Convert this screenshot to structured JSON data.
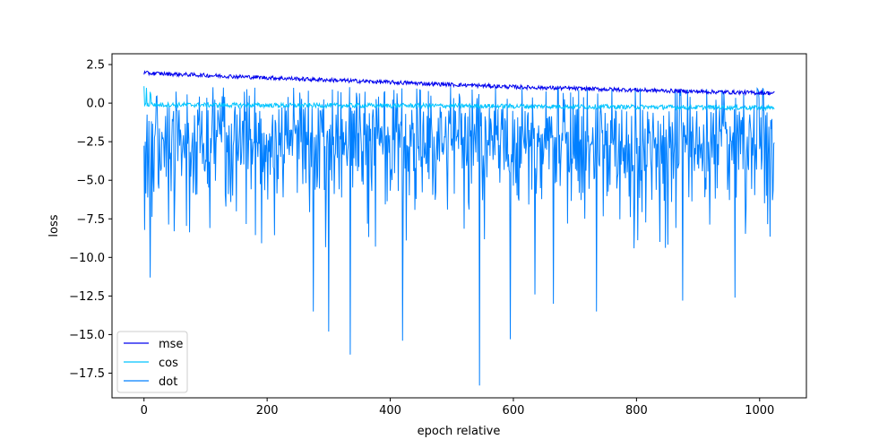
{
  "chart_data": {
    "type": "line",
    "title": "",
    "xlabel": "epoch relative",
    "ylabel": "loss",
    "xlim": [
      -52,
      1076
    ],
    "ylim": [
      -19.1,
      3.2
    ],
    "xticks": [
      0,
      200,
      400,
      600,
      800,
      1000
    ],
    "yticks": [
      2.5,
      0.0,
      -2.5,
      -5.0,
      -7.5,
      -10.0,
      -12.5,
      -15.0,
      -17.5
    ],
    "ytick_labels": [
      "2.5",
      "0.0",
      "−2.5",
      "−5.0",
      "−7.5",
      "−10.0",
      "−12.5",
      "−15.0",
      "−17.5"
    ],
    "grid": false,
    "legend_position": "lower-left",
    "x_range": [
      0,
      1024
    ],
    "series": [
      {
        "name": "mse",
        "color": "#0000ee",
        "description_points": {
          "x": [
            0,
            100,
            200,
            300,
            400,
            500,
            600,
            700,
            800,
            900,
            1024
          ],
          "y": [
            1.95,
            1.8,
            1.65,
            1.5,
            1.35,
            1.2,
            1.05,
            0.95,
            0.85,
            0.75,
            0.65
          ]
        }
      },
      {
        "name": "cos",
        "color": "#00c4ff",
        "description_points": {
          "x": [
            0,
            100,
            200,
            300,
            400,
            500,
            600,
            700,
            800,
            900,
            1024
          ],
          "y": [
            -0.1,
            -0.12,
            -0.14,
            -0.15,
            -0.16,
            -0.17,
            -0.2,
            -0.22,
            -0.25,
            -0.27,
            -0.3
          ]
        }
      },
      {
        "name": "dot",
        "color": "#007fff",
        "typical_range": [
          -5.5,
          0.5
        ],
        "notable_minima": [
          {
            "x": 10,
            "y": -11.3
          },
          {
            "x": 275,
            "y": -13.5
          },
          {
            "x": 300,
            "y": -14.8
          },
          {
            "x": 335,
            "y": -16.3
          },
          {
            "x": 420,
            "y": -15.4
          },
          {
            "x": 545,
            "y": -18.3
          },
          {
            "x": 595,
            "y": -15.3
          },
          {
            "x": 635,
            "y": -12.4
          },
          {
            "x": 665,
            "y": -13.0
          },
          {
            "x": 735,
            "y": -13.5
          },
          {
            "x": 875,
            "y": -12.8
          },
          {
            "x": 960,
            "y": -12.6
          }
        ]
      }
    ]
  }
}
